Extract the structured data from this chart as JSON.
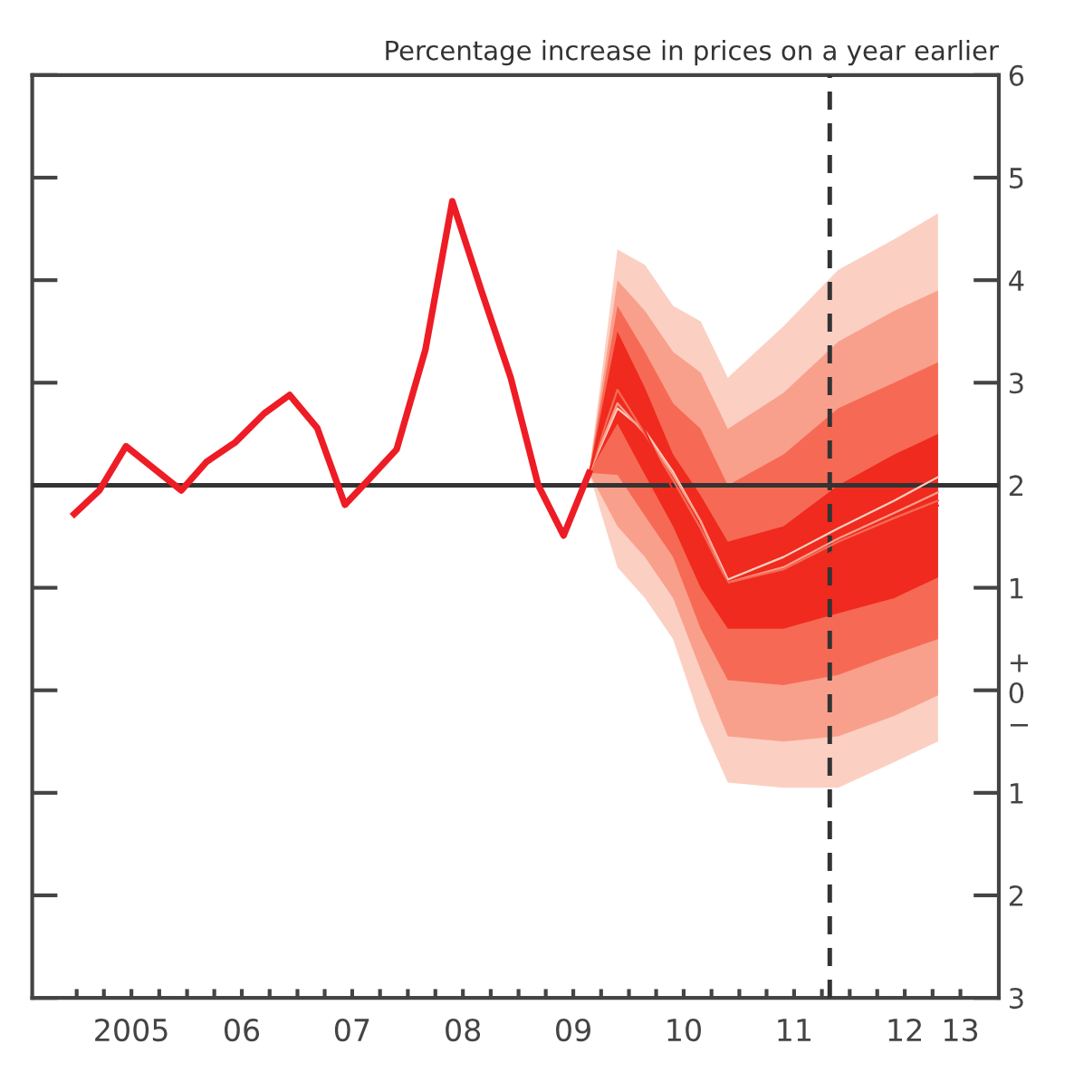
{
  "chart_data": {
    "type": "line",
    "title": "Percentage increase in prices on a year earlier",
    "xlim": [
      "2004-08-07",
      "2013-05-08"
    ],
    "ylim": [
      -3,
      6
    ],
    "xticks": [
      {
        "value": "2005-01-01",
        "label": null
      },
      {
        "value": "2005-04-01",
        "label": null
      },
      {
        "value": "2005-07-01",
        "label": "2005"
      },
      {
        "value": "2005-10-01",
        "label": null
      },
      {
        "value": "2006-01-01",
        "label": null
      },
      {
        "value": "2006-04-01",
        "label": null
      },
      {
        "value": "2006-07-01",
        "label": "06"
      },
      {
        "value": "2006-10-01",
        "label": null
      },
      {
        "value": "2007-01-01",
        "label": null
      },
      {
        "value": "2007-04-01",
        "label": null
      },
      {
        "value": "2007-07-01",
        "label": "07"
      },
      {
        "value": "2007-10-01",
        "label": null
      },
      {
        "value": "2008-01-01",
        "label": null
      },
      {
        "value": "2008-04-01",
        "label": null
      },
      {
        "value": "2008-07-01",
        "label": "08"
      },
      {
        "value": "2008-10-01",
        "label": null
      },
      {
        "value": "2009-01-01",
        "label": null
      },
      {
        "value": "2009-04-01",
        "label": null
      },
      {
        "value": "2009-07-01",
        "label": "09"
      },
      {
        "value": "2009-10-01",
        "label": null
      },
      {
        "value": "2010-01-01",
        "label": null
      },
      {
        "value": "2010-04-01",
        "label": null
      },
      {
        "value": "2010-07-01",
        "label": "10"
      },
      {
        "value": "2010-10-01",
        "label": null
      },
      {
        "value": "2011-01-01",
        "label": null
      },
      {
        "value": "2011-04-01",
        "label": null
      },
      {
        "value": "2011-07-01",
        "label": "11"
      },
      {
        "value": "2011-10-01",
        "label": null
      },
      {
        "value": "2012-01-01",
        "label": null
      },
      {
        "value": "2012-04-01",
        "label": null
      },
      {
        "value": "2012-07-01",
        "label": "12"
      },
      {
        "value": "2012-10-01",
        "label": null
      },
      {
        "value": "2013-01-01",
        "label": "13"
      }
    ],
    "yticks": [
      {
        "value": -3,
        "label": "3"
      },
      {
        "value": -2,
        "label": "2"
      },
      {
        "value": -1,
        "label": "1"
      },
      {
        "value": 0,
        "label": "+\n0\n−"
      },
      1,
      2,
      3,
      4,
      5,
      6
    ],
    "grid": false,
    "marker": "none",
    "line_style": "solid",
    "ref_lines": [
      {
        "axis": "y",
        "value": 2,
        "color": "#333333",
        "line_style": "solid"
      },
      {
        "axis": "x",
        "value": "2011-10-27",
        "color": "#333333",
        "line_style": "dashed"
      }
    ],
    "series": [
      {
        "type": "line",
        "color": "#fbd0c3",
        "x": [
          "2009-08-22",
          "2009-11-24",
          "2010-02-23",
          "2010-05-27",
          "2010-08-26",
          "2010-11-24",
          "2011-05-27",
          "2011-11-24",
          "2012-05-27",
          "2012-10-19"
        ],
        "values": [
          2.12,
          2.75,
          2.53,
          2.13,
          1.65,
          1.08,
          1.3,
          1.58,
          1.85,
          2.08
        ],
        "upper": [
          2.12,
          4.3,
          4.15,
          3.75,
          3.6,
          3.05,
          3.55,
          4.1,
          4.4,
          4.65
        ],
        "lower": [
          2.12,
          1.2,
          0.9,
          0.5,
          -0.3,
          -0.9,
          -0.95,
          -0.95,
          -0.7,
          -0.5
        ]
      },
      {
        "type": "line",
        "color": "#f9a08c",
        "x": [
          "2009-08-22",
          "2009-11-24",
          "2010-02-23",
          "2010-05-27",
          "2010-08-26",
          "2010-11-24",
          "2011-05-27",
          "2011-11-24",
          "2012-05-27",
          "2012-10-19"
        ],
        "values": [
          2.12,
          2.8,
          2.5,
          2.1,
          1.65,
          1.05,
          1.2,
          1.48,
          1.73,
          1.93
        ],
        "upper": [
          2.12,
          4.0,
          3.7,
          3.3,
          3.1,
          2.55,
          2.9,
          3.4,
          3.7,
          3.9
        ],
        "lower": [
          2.12,
          1.6,
          1.3,
          0.9,
          0.2,
          -0.45,
          -0.5,
          -0.45,
          -0.25,
          -0.05
        ]
      },
      {
        "type": "line",
        "color": "#f66a55",
        "x": [
          "2009-08-22",
          "2009-11-24",
          "2010-02-23",
          "2010-05-27",
          "2010-08-26",
          "2010-11-24",
          "2011-05-27",
          "2011-11-24",
          "2012-05-27",
          "2012-10-19"
        ],
        "values": [
          2.12,
          2.93,
          2.5,
          2.05,
          1.58,
          1.05,
          1.18,
          1.45,
          1.68,
          1.85
        ],
        "upper": [
          2.12,
          3.75,
          3.3,
          2.8,
          2.55,
          2.0,
          2.3,
          2.75,
          3.0,
          3.2
        ],
        "lower": [
          2.12,
          2.1,
          1.7,
          1.3,
          0.6,
          0.1,
          0.05,
          0.15,
          0.35,
          0.5
        ]
      },
      {
        "type": "line",
        "color": "#f02a1e",
        "x": [
          "2009-08-22",
          "2009-11-24",
          "2010-02-23",
          "2010-05-27",
          "2010-08-26",
          "2010-11-24",
          "2011-05-27",
          "2011-11-24",
          "2012-05-27",
          "2012-10-19"
        ],
        "values": [
          2.12,
          3.05,
          2.53,
          1.95,
          1.45,
          1.03,
          1.1,
          1.38,
          1.6,
          1.8
        ],
        "upper": [
          2.12,
          3.5,
          2.95,
          2.3,
          1.9,
          1.45,
          1.6,
          2.0,
          2.3,
          2.5
        ],
        "lower": [
          2.12,
          2.6,
          2.1,
          1.6,
          1.0,
          0.6,
          0.6,
          0.75,
          0.9,
          1.1
        ]
      },
      {
        "color": "#ee1c25",
        "x": [
          "2004-12-24",
          "2005-03-17",
          "2005-06-13",
          "2005-12-13",
          "2006-03-07",
          "2006-06-10",
          "2006-09-13",
          "2006-12-06",
          "2007-03-07",
          "2007-06-07",
          "2007-08-23",
          "2007-11-25",
          "2008-02-28",
          "2008-05-27",
          "2008-09-02",
          "2008-12-06",
          "2009-03-07",
          "2009-05-30",
          "2009-08-22"
        ],
        "values": [
          1.72,
          1.95,
          2.38,
          1.95,
          2.23,
          2.42,
          2.7,
          2.88,
          2.56,
          1.81,
          2.05,
          2.35,
          3.32,
          4.77,
          3.88,
          3.05,
          2.0,
          1.51,
          2.12
        ]
      }
    ]
  }
}
